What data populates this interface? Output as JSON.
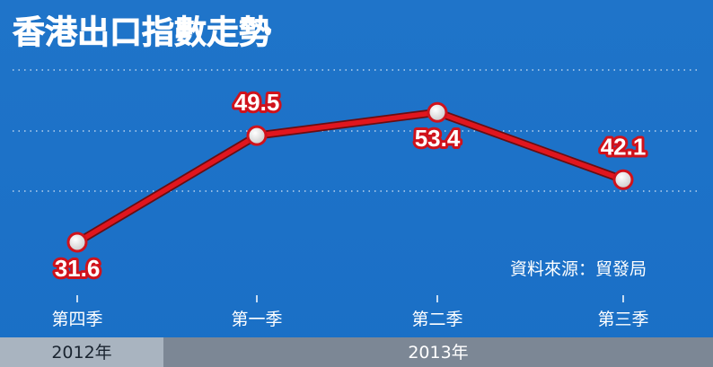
{
  "chart_data": {
    "type": "line",
    "title": "香港出口指數走勢",
    "categories": [
      "第四季",
      "第一季",
      "第二季",
      "第三季"
    ],
    "values": [
      31.6,
      49.5,
      53.4,
      42.1
    ],
    "color": "#e0161e",
    "ylim": [
      20,
      70
    ],
    "source": "資料來源：貿發局",
    "year_labels": [
      "2012年",
      "2013年"
    ]
  }
}
